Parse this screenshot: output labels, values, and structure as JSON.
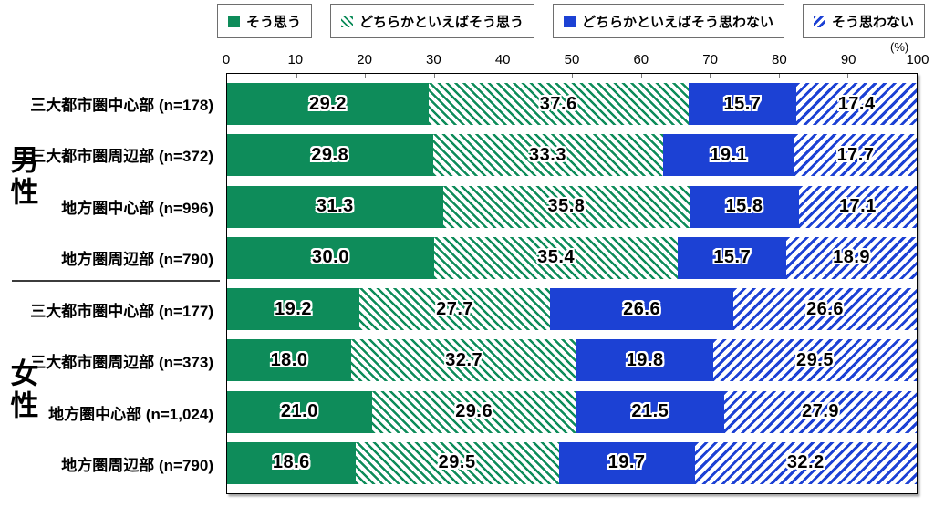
{
  "chart_data": {
    "type": "bar",
    "orientation": "horizontal-stacked",
    "title": "",
    "unit_label": "(%)",
    "xlim": [
      0,
      100
    ],
    "x_ticks": [
      0,
      10,
      20,
      30,
      40,
      50,
      60,
      70,
      80,
      90,
      100
    ],
    "legend_position": "top",
    "grid": false,
    "colors": {
      "green": "#0E8C5A",
      "blue": "#1C41D4",
      "label_text": "#000000",
      "plot_border": "#000000"
    },
    "series": [
      {
        "name": "そう思う",
        "pattern": "solid",
        "color": "#0E8C5A"
      },
      {
        "name": "どちらかといえばそう思う",
        "pattern": "stripe-down",
        "color": "#0E8C5A"
      },
      {
        "name": "どちらかといえばそう思わない",
        "pattern": "solid",
        "color": "#1C41D4"
      },
      {
        "name": "そう思わない",
        "pattern": "stripe-up",
        "color": "#1C41D4"
      }
    ],
    "groups": [
      {
        "name": "男性",
        "rows": [
          {
            "label": "三大都市圏中心部 (n=178)",
            "values": [
              29.2,
              37.6,
              15.7,
              17.4
            ],
            "labels": [
              "29.2",
              "37.6",
              "15.7",
              "17.4"
            ]
          },
          {
            "label": "三大都市圏周辺部 (n=372)",
            "values": [
              29.8,
              33.3,
              19.1,
              17.7
            ],
            "labels": [
              "29.8",
              "33.3",
              "19.1",
              "17.7"
            ]
          },
          {
            "label": "地方圏中心部 (n=996)",
            "values": [
              31.3,
              35.8,
              15.8,
              17.1
            ],
            "labels": [
              "31.3",
              "35.8",
              "15.8",
              "17.1"
            ]
          },
          {
            "label": "地方圏周辺部 (n=790)",
            "values": [
              30.0,
              35.4,
              15.7,
              18.9
            ],
            "labels": [
              "30.0",
              "35.4",
              "15.7",
              "18.9"
            ]
          }
        ]
      },
      {
        "name": "女性",
        "rows": [
          {
            "label": "三大都市圏中心部 (n=177)",
            "values": [
              19.2,
              27.7,
              26.6,
              26.6
            ],
            "labels": [
              "19.2",
              "27.7",
              "26.6",
              "26.6"
            ]
          },
          {
            "label": "三大都市圏周辺部 (n=373)",
            "values": [
              18.0,
              32.7,
              19.8,
              29.5
            ],
            "labels": [
              "18.0",
              "32.7",
              "19.8",
              "29.5"
            ]
          },
          {
            "label": "地方圏中心部 (n=1,024)",
            "values": [
              21.0,
              29.6,
              21.5,
              27.9
            ],
            "labels": [
              "21.0",
              "29.6",
              "21.5",
              "27.9"
            ]
          },
          {
            "label": "地方圏周辺部 (n=790)",
            "values": [
              18.6,
              29.5,
              19.7,
              32.2
            ],
            "labels": [
              "18.6",
              "29.5",
              "19.7",
              "32.2"
            ]
          }
        ]
      }
    ]
  }
}
